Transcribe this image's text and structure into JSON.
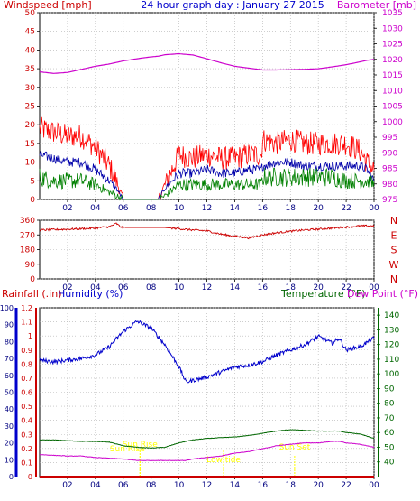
{
  "header": {
    "windspeed_label": "Windspeed [mph]",
    "title": "24 hour graph day : January 27 2015",
    "barometer_label": "Barometer [mb]"
  },
  "panel_lower_labels": {
    "rainfall": "Rainfall (.in)",
    "humidity": "Humidity (%)",
    "temperature": "Temperature (°F)",
    "dewpoint": "Dew Point (°F)"
  },
  "colors": {
    "wind_gust": "#ff0000",
    "wind_avg": "#0000aa",
    "wind_min": "#008000",
    "barometer": "#cc00cc",
    "direction": "#cc0000",
    "humidity": "#0000cc",
    "temperature": "#006600",
    "dewpoint": "#cc00cc",
    "rainfall": "#cc0000",
    "events": "#ffff00",
    "grid": "#b0b0b0"
  },
  "chart_data": [
    {
      "type": "line",
      "name": "wind",
      "x_ticks": [
        "02",
        "04",
        "06",
        "08",
        "10",
        "12",
        "14",
        "16",
        "18",
        "20",
        "22",
        "00"
      ],
      "y_left_ticks": [
        "0",
        "5",
        "10",
        "15",
        "20",
        "25",
        "30",
        "35",
        "40",
        "45",
        "50"
      ],
      "ylim_left": [
        0,
        50
      ],
      "y_right_ticks": [
        "975",
        "980",
        "985",
        "990",
        "995",
        "1000",
        "1005",
        "1010",
        "1015",
        "1020",
        "1025",
        "1030",
        "1035"
      ],
      "ylim_right": [
        975,
        1035
      ],
      "x": [
        0,
        1,
        2,
        3,
        4,
        5,
        5.5,
        6,
        7,
        8,
        8.5,
        9,
        10,
        11,
        12,
        13,
        14,
        15,
        15.9,
        16,
        17,
        18,
        19,
        20,
        21,
        22,
        23,
        23.5,
        24
      ],
      "series": [
        {
          "key": "gust",
          "values": [
            19,
            18,
            17,
            17,
            14,
            9,
            5,
            0,
            0,
            0,
            0,
            4,
            12,
            11,
            12,
            11,
            11,
            12,
            12,
            16,
            15,
            16,
            15,
            15,
            15,
            15,
            13,
            10,
            8
          ]
        },
        {
          "key": "average",
          "values": [
            12,
            11,
            10,
            10,
            8,
            5,
            3,
            0,
            0,
            0,
            0,
            3,
            7,
            7,
            8,
            7,
            7,
            8,
            8,
            9,
            10,
            10,
            9,
            9,
            9,
            9,
            9,
            8,
            5
          ]
        },
        {
          "key": "minimum",
          "values": [
            6,
            5,
            5,
            5,
            4,
            2,
            1,
            0,
            0,
            0,
            0,
            1,
            4,
            4,
            4,
            4,
            4,
            4,
            4,
            6,
            6,
            6,
            6,
            6,
            6,
            5,
            5,
            5,
            4
          ]
        },
        {
          "key": "barometer",
          "values": [
            1016,
            1015.5,
            1015.8,
            1016.8,
            1017.8,
            1018.5,
            1019,
            1019.5,
            1020.2,
            1020.8,
            1021,
            1021.5,
            1021.8,
            1021.4,
            1020.2,
            1018.9,
            1017.8,
            1017.2,
            1016.7,
            1016.6,
            1016.6,
            1016.7,
            1016.8,
            1017,
            1017.6,
            1018.3,
            1019.2,
            1019.7,
            1020
          ]
        }
      ]
    },
    {
      "type": "line",
      "name": "wind direction",
      "x_ticks": [
        "02",
        "04",
        "06",
        "08",
        "10",
        "12",
        "14",
        "16",
        "18",
        "20",
        "22",
        "00"
      ],
      "y_left_ticks": [
        "0",
        "90",
        "180",
        "270",
        "360"
      ],
      "ylim": [
        0,
        360
      ],
      "y_right_ticks": [
        "N",
        "W",
        "S",
        "E",
        "N"
      ],
      "x": [
        0,
        1,
        2,
        3,
        4,
        5,
        5.5,
        5.8,
        6,
        7,
        8,
        9,
        10,
        11,
        12,
        13,
        14,
        15,
        16,
        17,
        18,
        19,
        20,
        21,
        22,
        23,
        24
      ],
      "series": [
        {
          "key": "direction",
          "values": [
            300,
            302,
            305,
            308,
            312,
            320,
            340,
            320,
            315,
            315,
            315,
            315,
            308,
            300,
            295,
            275,
            262,
            252,
            270,
            283,
            292,
            300,
            305,
            312,
            318,
            325,
            325
          ]
        }
      ]
    },
    {
      "type": "line",
      "name": "humidity temperature rainfall",
      "x_ticks": [
        "02",
        "04",
        "06",
        "08",
        "10",
        "12",
        "14",
        "16",
        "18",
        "20",
        "22",
        "00"
      ],
      "rain_ticks": [
        "0",
        "0.1",
        "0.2",
        "0.3",
        "0.4",
        "0.5",
        "0.6",
        "0.7",
        "0.8",
        "0.9",
        "1",
        "1.1",
        "1.2"
      ],
      "rain_ylim": [
        0,
        1.2
      ],
      "humidity_ticks": [
        "0",
        "10",
        "20",
        "30",
        "40",
        "50",
        "60",
        "70",
        "80",
        "90",
        "100"
      ],
      "humidity_ylim": [
        0,
        100
      ],
      "temp_ticks": [
        "40",
        "50",
        "60",
        "70",
        "80",
        "90",
        "100",
        "110",
        "120",
        "130",
        "140"
      ],
      "temp_ylim": [
        30,
        145
      ],
      "x": [
        0,
        1,
        2,
        3,
        4,
        5,
        6,
        7,
        8,
        9,
        10,
        10.5,
        11,
        12,
        13,
        14,
        15,
        16,
        17,
        18,
        19,
        20,
        21,
        21.5,
        22,
        23,
        24
      ],
      "series": [
        {
          "key": "humidity",
          "values": [
            69,
            68,
            69,
            70,
            72,
            77,
            86,
            92,
            88,
            78,
            65,
            56,
            57,
            59,
            62,
            65,
            66,
            68,
            72,
            75,
            78,
            83,
            79,
            82,
            75,
            77,
            82
          ]
        },
        {
          "key": "temperature",
          "values": [
            55,
            55,
            54.5,
            54,
            54,
            53.5,
            51,
            50,
            49.5,
            50,
            53,
            54,
            55,
            56,
            56.5,
            57,
            58,
            59.5,
            61,
            62,
            61.5,
            61,
            61,
            61,
            60,
            59,
            56
          ]
        },
        {
          "key": "dewpoint",
          "values": [
            45,
            44.5,
            44,
            44,
            43,
            42.5,
            42,
            41,
            41,
            41,
            41,
            41,
            42,
            43,
            44,
            46,
            47,
            49,
            51,
            52,
            53,
            53,
            54,
            54,
            53,
            52,
            50
          ]
        },
        {
          "key": "rainfall",
          "values": [
            0,
            0,
            0,
            0,
            0,
            0,
            0,
            0,
            0,
            0,
            0,
            0,
            0,
            0,
            0,
            0,
            0,
            0,
            0,
            0,
            0,
            0,
            0,
            0,
            0,
            0,
            0
          ]
        }
      ],
      "events": [
        {
          "label": "Sun Rise",
          "x": 7.2
        },
        {
          "label": "Sun Rise",
          "x": 7.2
        },
        {
          "label": "Low tide",
          "x": 13.2
        },
        {
          "label": "Sun Set",
          "x": 18.3
        }
      ]
    }
  ]
}
